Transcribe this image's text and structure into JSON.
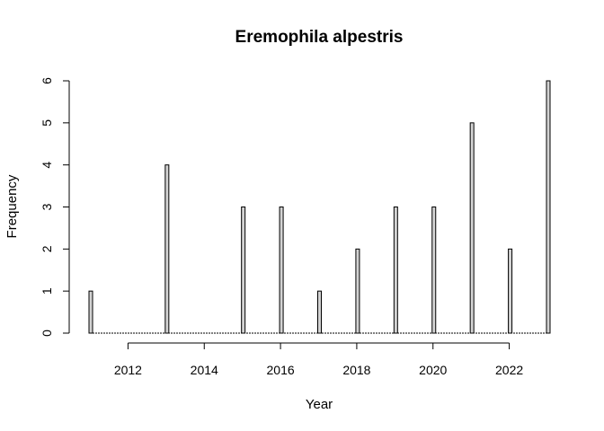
{
  "chart_data": {
    "type": "bar",
    "title": "Eremophila alpestris",
    "xlabel": "Year",
    "ylabel": "Frequency",
    "x_ticks": [
      2012,
      2014,
      2016,
      2018,
      2020,
      2022
    ],
    "y_ticks": [
      0,
      1,
      2,
      3,
      4,
      5,
      6
    ],
    "xlim": [
      2011,
      2023
    ],
    "ylim": [
      0,
      6
    ],
    "grid": false,
    "legend": "none",
    "bar_fill": "#d3d3d3",
    "series": [
      {
        "x": [
          2011,
          2012,
          2013,
          2014,
          2015,
          2016,
          2017,
          2018,
          2019,
          2020,
          2021,
          2022,
          2023
        ],
        "values": [
          1,
          0,
          4,
          0,
          3,
          3,
          1,
          2,
          3,
          3,
          5,
          2,
          6
        ]
      }
    ]
  }
}
